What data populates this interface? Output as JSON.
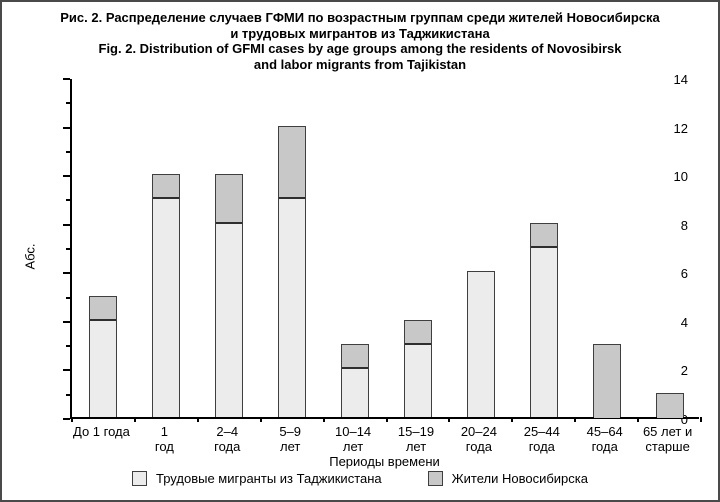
{
  "title": {
    "ru_line1": "Рис. 2. Распределение случаев ГФМИ по возрастным группам среди жителей Новосибирска",
    "ru_line2": "и трудовых мигрантов из Таджикистана",
    "en_line1": "Fig. 2. Distribution of GFMI cases by age groups among the residents of Novosibirsk",
    "en_line2": "and labor migrants from Tajikistan"
  },
  "chart_data": {
    "type": "bar",
    "stacked": true,
    "title": "Рис. 2. Распределение случаев ГФМИ по возрастным группам среди жителей Новосибирска и трудовых мигрантов из Таджикистана / Fig. 2. Distribution of GFMI cases by age groups among the residents of Novosibirsk and labor migrants from Tajikistan",
    "xlabel": "Периоды времени",
    "ylabel": "Абс.",
    "ylim": [
      0,
      14
    ],
    "yticks_major": [
      0,
      2,
      4,
      6,
      8,
      10,
      12,
      14
    ],
    "yticks_minor": [
      1,
      3,
      5,
      7,
      9,
      11,
      13
    ],
    "grid": false,
    "legend_position": "bottom",
    "categories": [
      {
        "line1": "До 1 года",
        "line2": ""
      },
      {
        "line1": "1",
        "line2": "год"
      },
      {
        "line1": "2–4",
        "line2": "года"
      },
      {
        "line1": "5–9",
        "line2": "лет"
      },
      {
        "line1": "10–14",
        "line2": "лет"
      },
      {
        "line1": "15–19",
        "line2": "лет"
      },
      {
        "line1": "20–24",
        "line2": "года"
      },
      {
        "line1": "25–44",
        "line2": "года"
      },
      {
        "line1": "45–64",
        "line2": "года"
      },
      {
        "line1": "65 лет и",
        "line2": "старше"
      }
    ],
    "series": [
      {
        "name": "Трудовые мигранты из Таджикистана",
        "color": "#ececec",
        "values": [
          4,
          9,
          8,
          9,
          2,
          3,
          6,
          7,
          0,
          0
        ]
      },
      {
        "name": "Жители Новосибирска",
        "color": "#c8c8c8",
        "values": [
          1,
          1,
          2,
          3,
          1,
          1,
          0,
          1,
          3,
          1
        ]
      }
    ],
    "totals": [
      5,
      10,
      10,
      12,
      3,
      4,
      6,
      8,
      3,
      1
    ],
    "bar_border_color": "#3f3f3f",
    "segment_divider_color": "#2e2e2e"
  }
}
